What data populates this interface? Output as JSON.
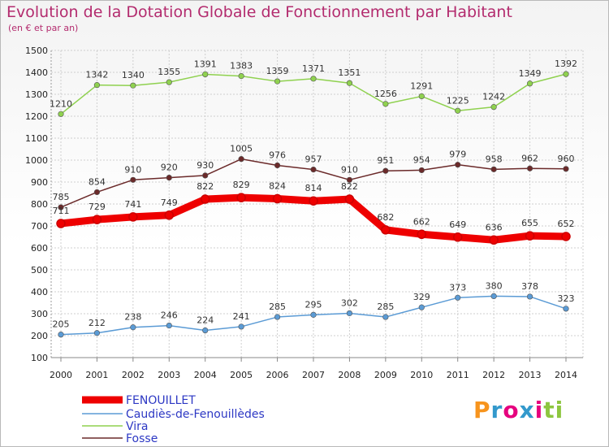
{
  "chart_data": {
    "type": "line",
    "title": "Evolution de la Dotation Globale de Fonctionnement par Habitant",
    "subtitle": "(en € et par an)",
    "x": [
      "2000",
      "2001",
      "2002",
      "2003",
      "2004",
      "2005",
      "2006",
      "2007",
      "2008",
      "2009",
      "2010",
      "2011",
      "2012",
      "2013",
      "2014"
    ],
    "ylim": [
      100,
      1500
    ],
    "yticks": [
      100,
      200,
      300,
      400,
      500,
      600,
      700,
      800,
      900,
      1000,
      1100,
      1200,
      1300,
      1400,
      1500
    ],
    "grid": true,
    "legend_position": "bottom-left",
    "series": [
      {
        "name": "FENOUILLET",
        "color": "#ee0000",
        "values": [
          711,
          729,
          741,
          749,
          822,
          829,
          824,
          814,
          822,
          682,
          662,
          649,
          636,
          655,
          652
        ]
      },
      {
        "name": "Caudiès-de-Fenouillèdes",
        "color": "#5b9bd5",
        "values": [
          205,
          212,
          238,
          246,
          224,
          241,
          285,
          295,
          302,
          285,
          329,
          373,
          380,
          378,
          323
        ]
      },
      {
        "name": "Vira",
        "color": "#8fd14f",
        "values": [
          1210,
          1342,
          1340,
          1355,
          1391,
          1383,
          1359,
          1371,
          1351,
          1256,
          1291,
          1225,
          1242,
          1349,
          1392
        ]
      },
      {
        "name": "Fosse",
        "color": "#6b2a2a",
        "values": [
          785,
          854,
          910,
          920,
          930,
          1005,
          976,
          957,
          910,
          951,
          954,
          979,
          958,
          962,
          960
        ]
      }
    ]
  },
  "logo": {
    "text": "Proxiti",
    "colors": [
      "#f7941d",
      "#3399cc",
      "#e6007e",
      "#3399cc",
      "#e6007e",
      "#8dc63f",
      "#8dc63f"
    ]
  }
}
